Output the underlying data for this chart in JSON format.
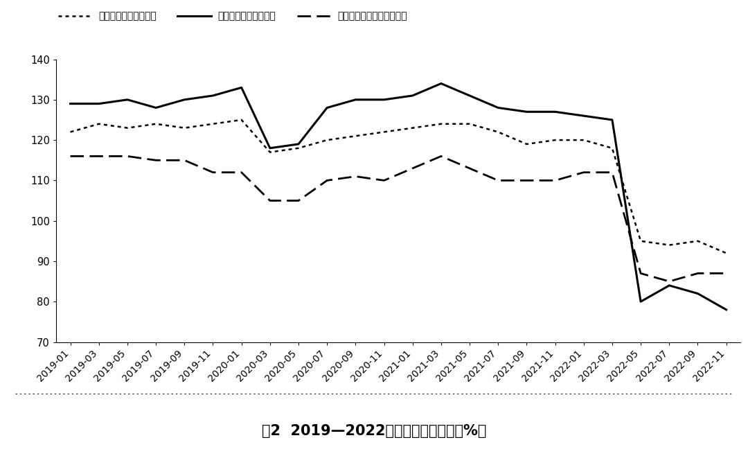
{
  "title": "图2  2019—2022年消费者信心指数（%）",
  "legend_labels": [
    "消费者信心指数：收入",
    "消费者信心指数：就业",
    "消费者信心指数：消费意愿"
  ],
  "x_labels": [
    "2019-01",
    "2019-03",
    "2019-05",
    "2019-07",
    "2019-09",
    "2019-11",
    "2020-01",
    "2020-03",
    "2020-05",
    "2020-07",
    "2020-09",
    "2020-11",
    "2021-01",
    "2021-03",
    "2021-05",
    "2021-07",
    "2021-09",
    "2021-11",
    "2022-01",
    "2022-03",
    "2022-05",
    "2022-07",
    "2022-09",
    "2022-11"
  ],
  "income": [
    122,
    124,
    123,
    124,
    123,
    124,
    125,
    117,
    118,
    120,
    121,
    122,
    123,
    124,
    124,
    122,
    119,
    120,
    120,
    118,
    95,
    94,
    95,
    92
  ],
  "employment": [
    129,
    129,
    130,
    128,
    130,
    131,
    133,
    118,
    119,
    128,
    130,
    130,
    131,
    134,
    131,
    128,
    127,
    127,
    126,
    125,
    80,
    84,
    82,
    78
  ],
  "consumption": [
    116,
    116,
    116,
    115,
    115,
    112,
    112,
    105,
    105,
    110,
    111,
    110,
    113,
    116,
    113,
    110,
    110,
    110,
    112,
    112,
    87,
    85,
    87,
    87
  ],
  "ylim": [
    70,
    140
  ],
  "yticks": [
    70,
    80,
    90,
    100,
    110,
    120,
    130,
    140
  ],
  "background_color": "#ffffff",
  "line_color": "#000000",
  "title_fontsize": 15,
  "legend_fontsize": 13,
  "tick_fontsize": 10.5
}
